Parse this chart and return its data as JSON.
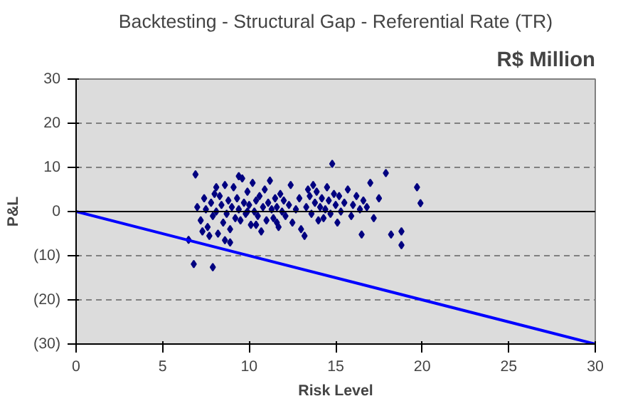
{
  "chart_data": {
    "type": "scatter",
    "title": "Backtesting - Structural Gap - Referential Rate (TR)",
    "annotations": [
      "R$ Million"
    ],
    "xlabel": "Risk Level",
    "ylabel": "P&L",
    "xlim": [
      0,
      30
    ],
    "ylim": [
      -30,
      30
    ],
    "xticks": [
      0,
      5,
      10,
      15,
      20,
      25,
      30
    ],
    "yticks": [
      {
        "value": -30,
        "label": "(30)"
      },
      {
        "value": -20,
        "label": "(20)"
      },
      {
        "value": -10,
        "label": "(10)"
      },
      0,
      10,
      20,
      30
    ],
    "grid": "y",
    "marker": "diamond",
    "ref_lines": [
      {
        "axis": "y",
        "value": 0,
        "color": "#000000"
      }
    ],
    "series": [
      {
        "color": "#000080",
        "x": [
          6.9,
          6.8,
          7.9,
          6.5,
          7.0,
          7.2,
          7.4,
          7.5,
          7.6,
          7.8,
          7.9,
          8.0,
          8.1,
          8.2,
          8.3,
          8.4,
          8.5,
          8.6,
          8.7,
          8.8,
          8.9,
          9.0,
          9.1,
          9.2,
          9.3,
          9.4,
          9.5,
          9.6,
          9.7,
          9.8,
          9.9,
          10.0,
          10.1,
          10.2,
          10.3,
          10.4,
          10.5,
          10.6,
          10.7,
          10.8,
          10.9,
          11.0,
          11.1,
          11.2,
          11.3,
          11.4,
          11.5,
          11.6,
          11.7,
          11.8,
          11.9,
          12.0,
          12.1,
          12.3,
          12.5,
          12.7,
          12.9,
          13.0,
          13.2,
          13.3,
          13.4,
          13.5,
          13.6,
          13.7,
          13.8,
          13.9,
          14.0,
          14.1,
          14.2,
          14.3,
          14.4,
          14.5,
          14.6,
          14.7,
          14.8,
          14.9,
          15.0,
          15.1,
          15.2,
          15.3,
          15.5,
          15.7,
          15.9,
          16.0,
          16.2,
          16.4,
          16.5,
          16.6,
          16.8,
          17.0,
          17.2,
          17.5,
          17.9,
          18.2,
          18.8,
          18.8,
          19.7,
          19.9,
          7.3,
          8.1,
          8.6,
          9.4,
          10.4,
          11.6,
          8.9,
          12.4,
          7.7,
          9.9
        ],
        "values": [
          8.4,
          -11.9,
          -12.6,
          -6.4,
          1.0,
          -2.0,
          3.0,
          0.5,
          -3.5,
          2.0,
          -1.0,
          4.0,
          0.0,
          -5.0,
          3.5,
          1.5,
          -2.5,
          6.0,
          -0.5,
          2.5,
          -4.0,
          1.0,
          5.5,
          -1.5,
          3.0,
          0.5,
          -2.0,
          7.5,
          2.0,
          -0.5,
          4.5,
          1.5,
          -3.0,
          6.5,
          0.0,
          2.5,
          -1.0,
          3.5,
          -4.5,
          1.0,
          5.0,
          -2.0,
          2.0,
          7.0,
          0.5,
          -1.5,
          3.0,
          1.0,
          -3.5,
          4.0,
          0.0,
          2.5,
          -1.0,
          1.5,
          -2.5,
          0.5,
          3.0,
          -4.0,
          -5.5,
          1.0,
          5.0,
          3.5,
          -0.5,
          6.0,
          2.0,
          4.5,
          -2.0,
          1.0,
          3.0,
          -1.5,
          0.5,
          5.5,
          2.5,
          -0.5,
          10.8,
          4.0,
          1.5,
          -2.5,
          3.5,
          0.0,
          2.0,
          5.0,
          -1.0,
          1.5,
          3.5,
          0.5,
          -5.2,
          2.5,
          1.0,
          6.5,
          -1.5,
          3.0,
          8.7,
          -5.2,
          -4.5,
          -7.6,
          5.5,
          1.9,
          -4.5,
          5.5,
          -6.5,
          8.0,
          -3.0,
          -2.5,
          -7.0,
          6.0,
          -5.5,
          0.0
        ]
      },
      {
        "type": "line",
        "marker": "none",
        "color": "#0000ff",
        "x": [
          0,
          30
        ],
        "values": [
          0,
          -30
        ]
      }
    ]
  }
}
